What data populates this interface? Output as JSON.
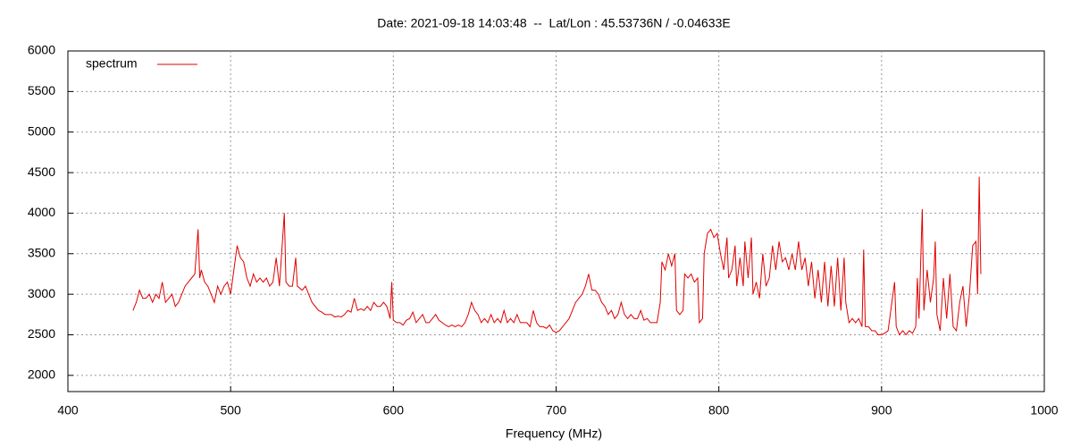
{
  "chart_data": {
    "type": "line",
    "title": "Date: 2021-09-18 14:03:48  --  Lat/Lon : 45.53736N / -0.04633E",
    "xlabel": "Frequency (MHz)",
    "x": [
      440,
      442,
      444,
      446,
      448,
      450,
      452,
      454,
      456,
      458,
      460,
      462,
      464,
      466,
      468,
      470,
      472,
      474,
      476,
      478,
      480,
      481,
      482,
      484,
      486,
      488,
      490,
      492,
      494,
      496,
      498,
      500,
      502,
      504,
      506,
      508,
      510,
      512,
      514,
      516,
      518,
      520,
      522,
      524,
      526,
      528,
      530,
      533,
      534,
      536,
      538,
      540,
      541,
      544,
      546,
      548,
      550,
      552,
      554,
      556,
      558,
      560,
      562,
      564,
      566,
      568,
      570,
      572,
      574,
      576,
      578,
      580,
      582,
      584,
      586,
      588,
      590,
      592,
      594,
      596,
      598,
      599,
      600,
      602,
      604,
      606,
      608,
      610,
      612,
      614,
      616,
      618,
      620,
      622,
      624,
      626,
      628,
      630,
      632,
      634,
      636,
      638,
      640,
      642,
      644,
      646,
      648,
      650,
      652,
      654,
      656,
      658,
      660,
      662,
      664,
      666,
      668,
      670,
      672,
      674,
      676,
      678,
      680,
      682,
      684,
      686,
      688,
      690,
      692,
      694,
      696,
      698,
      700,
      702,
      704,
      706,
      708,
      710,
      712,
      714,
      716,
      718,
      720,
      722,
      724,
      726,
      728,
      730,
      732,
      734,
      736,
      738,
      740,
      742,
      744,
      746,
      748,
      750,
      752,
      754,
      756,
      758,
      760,
      762,
      764,
      765,
      767,
      769,
      771,
      773,
      774,
      776,
      778,
      779,
      781,
      783,
      785,
      787,
      788,
      790,
      791,
      793,
      795,
      797,
      799,
      801,
      803,
      805,
      806,
      808,
      810,
      811,
      813,
      815,
      816,
      818,
      820,
      821,
      823,
      825,
      827,
      829,
      831,
      833,
      835,
      837,
      839,
      841,
      843,
      845,
      847,
      849,
      851,
      853,
      855,
      857,
      859,
      861,
      863,
      865,
      867,
      869,
      871,
      873,
      875,
      877,
      878,
      880,
      882,
      884,
      886,
      888,
      889,
      890,
      892,
      894,
      896,
      898,
      900,
      902,
      904,
      906,
      908,
      909,
      911,
      913,
      915,
      917,
      919,
      921,
      922,
      923,
      925,
      926,
      928,
      930,
      932,
      933,
      934,
      936,
      938,
      940,
      942,
      944,
      946,
      948,
      950,
      952,
      954,
      956,
      958,
      959,
      960,
      961
    ],
    "series": [
      {
        "name": "spectrum",
        "color": "#e00000",
        "values": [
          2800,
          2900,
          3050,
          2950,
          2950,
          3000,
          2900,
          3000,
          2950,
          3150,
          2900,
          2950,
          3000,
          2850,
          2900,
          3000,
          3100,
          3150,
          3200,
          3250,
          3800,
          3200,
          3300,
          3150,
          3100,
          3000,
          2900,
          3100,
          3000,
          3100,
          3150,
          3000,
          3300,
          3600,
          3450,
          3400,
          3200,
          3100,
          3250,
          3150,
          3200,
          3150,
          3200,
          3100,
          3150,
          3450,
          3100,
          4000,
          3150,
          3100,
          3100,
          3450,
          3100,
          3050,
          3100,
          3000,
          2900,
          2850,
          2800,
          2780,
          2750,
          2750,
          2750,
          2720,
          2730,
          2720,
          2750,
          2800,
          2780,
          2950,
          2800,
          2820,
          2800,
          2850,
          2800,
          2900,
          2850,
          2850,
          2900,
          2850,
          2700,
          3150,
          2680,
          2650,
          2650,
          2620,
          2680,
          2700,
          2780,
          2650,
          2700,
          2750,
          2650,
          2650,
          2700,
          2750,
          2680,
          2650,
          2620,
          2600,
          2620,
          2600,
          2620,
          2600,
          2650,
          2750,
          2900,
          2800,
          2750,
          2650,
          2700,
          2650,
          2750,
          2650,
          2700,
          2650,
          2800,
          2650,
          2700,
          2650,
          2750,
          2650,
          2650,
          2650,
          2600,
          2800,
          2650,
          2600,
          2600,
          2580,
          2620,
          2550,
          2530,
          2550,
          2600,
          2650,
          2700,
          2800,
          2900,
          2950,
          3000,
          3100,
          3250,
          3050,
          3050,
          3000,
          2900,
          2850,
          2750,
          2800,
          2700,
          2750,
          2900,
          2750,
          2700,
          2750,
          2700,
          2700,
          2800,
          2680,
          2700,
          2650,
          2650,
          2650,
          2900,
          3400,
          3300,
          3500,
          3350,
          3500,
          2800,
          2750,
          2800,
          3250,
          3200,
          3250,
          3150,
          3200,
          2650,
          2700,
          3500,
          3750,
          3800,
          3700,
          3750,
          3500,
          3300,
          3700,
          3200,
          3300,
          3600,
          3100,
          3450,
          3100,
          3650,
          3200,
          3700,
          3000,
          3150,
          2950,
          3500,
          3100,
          3200,
          3600,
          3300,
          3650,
          3400,
          3450,
          3300,
          3500,
          3300,
          3650,
          3300,
          3450,
          3100,
          3400,
          2950,
          3300,
          2900,
          3400,
          2850,
          3350,
          2850,
          3450,
          2800,
          3450,
          2900,
          2650,
          2700,
          2650,
          2700,
          2600,
          3550,
          2600,
          2600,
          2550,
          2550,
          2500,
          2500,
          2520,
          2550,
          2850,
          3150,
          2600,
          2500,
          2550,
          2500,
          2550,
          2520,
          2600,
          3200,
          2700,
          4050,
          2800,
          3300,
          2900,
          3200,
          3650,
          2750,
          2550,
          3200,
          2700,
          3250,
          2600,
          2550,
          2900,
          3100,
          2600,
          3000,
          3600,
          3650,
          3000,
          4450,
          3250
        ]
      }
    ],
    "xlim": [
      400,
      1000
    ],
    "xticks": [
      400,
      500,
      600,
      700,
      800,
      900,
      1000
    ],
    "ylim": [
      1800,
      6000
    ],
    "yticks": [
      2000,
      2500,
      3000,
      3500,
      4000,
      4500,
      5000,
      5500,
      6000
    ],
    "grid": true,
    "legend": "top-left"
  }
}
